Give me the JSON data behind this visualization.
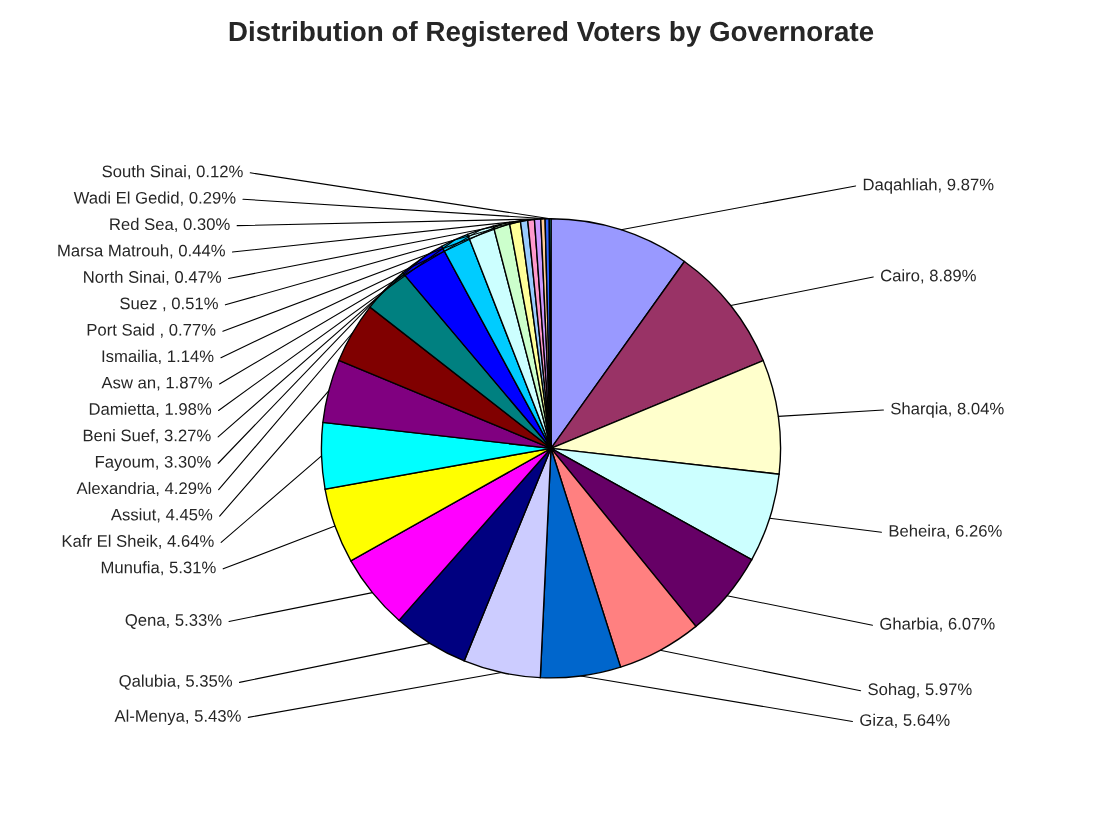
{
  "chart_data": {
    "type": "pie",
    "title": "Distribution of Registered Voters by Governorate",
    "categories": [
      "Daqahliah",
      "Cairo",
      "Sharqia",
      "Beheira",
      "Gharbia",
      "Sohag",
      "Giza",
      "Al-Menya",
      "Qalubia",
      "Qena",
      "Munufia",
      "Kafr El Sheik",
      "Assiut",
      "Alexandria",
      "Fayoum",
      "Beni Suef",
      "Damietta",
      "Asw an",
      "Ismailia",
      "Port Said ",
      "Suez ",
      "North Sinai",
      "Marsa Matrouh",
      "Red Sea",
      "Wadi El Gedid",
      "South Sinai"
    ],
    "values": [
      9.87,
      8.89,
      8.04,
      6.26,
      6.07,
      5.97,
      5.64,
      5.43,
      5.35,
      5.33,
      5.31,
      4.64,
      4.45,
      4.29,
      3.3,
      3.27,
      1.98,
      1.87,
      1.14,
      0.77,
      0.51,
      0.47,
      0.44,
      0.3,
      0.29,
      0.12
    ],
    "colors": [
      "#9999ff",
      "#993366",
      "#ffffcc",
      "#ccffff",
      "#660066",
      "#ff8080",
      "#0066cc",
      "#ccccff",
      "#000080",
      "#ff00ff",
      "#ffff00",
      "#00ffff",
      "#800080",
      "#800000",
      "#008080",
      "#0000ff",
      "#00ccff",
      "#ccffff",
      "#ccffcc",
      "#ffff99",
      "#99ccff",
      "#ff99cc",
      "#cc99ff",
      "#ffcc99",
      "#3366ff",
      "#33cccc"
    ],
    "value_labels": [
      "9.87%",
      "8.89%",
      "8.04%",
      "6.26%",
      "6.07%",
      "5.97%",
      "5.64%",
      "5.43%",
      "5.35%",
      "5.33%",
      "5.31%",
      "4.64%",
      "4.45%",
      "4.29%",
      "3.30%",
      "3.27%",
      "1.98%",
      "1.87%",
      "1.14%",
      "0.77%",
      "0.51%",
      "0.47%",
      "0.44%",
      "0.30%",
      "0.29%",
      "0.12%"
    ],
    "legend": false
  }
}
